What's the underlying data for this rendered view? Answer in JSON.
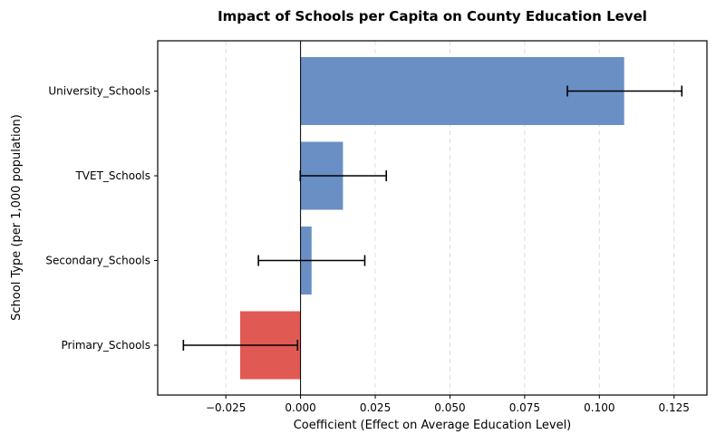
{
  "chart_data": {
    "type": "bar",
    "orientation": "horizontal",
    "title": "Impact of Schools per Capita on County Education Level",
    "xlabel": "Coefficient (Effect on Average Education Level)",
    "ylabel": "School Type (per 1,000 population)",
    "categories": [
      "Primary_Schools",
      "Secondary_Schools",
      "TVET_Schools",
      "University_Schools"
    ],
    "values": [
      -0.0202,
      0.0037,
      0.0142,
      0.1083
    ],
    "error_low": [
      -0.0392,
      -0.0141,
      -0.0001,
      0.0893
    ],
    "error_high": [
      -0.001,
      0.0215,
      0.0287,
      0.1276
    ],
    "xlim": [
      -0.0478,
      0.136
    ],
    "xticks": [
      -0.025,
      0.0,
      0.025,
      0.05,
      0.075,
      0.1,
      0.125
    ],
    "xtick_labels": [
      "−0.025",
      "0.000",
      "0.025",
      "0.050",
      "0.075",
      "0.100",
      "0.125"
    ],
    "grid": "x-dashed",
    "reference_line": 0,
    "colors": {
      "positive": "#6a8fc4",
      "negative": "#e05a53",
      "error": "#000000",
      "grid": "#dddddd"
    }
  }
}
